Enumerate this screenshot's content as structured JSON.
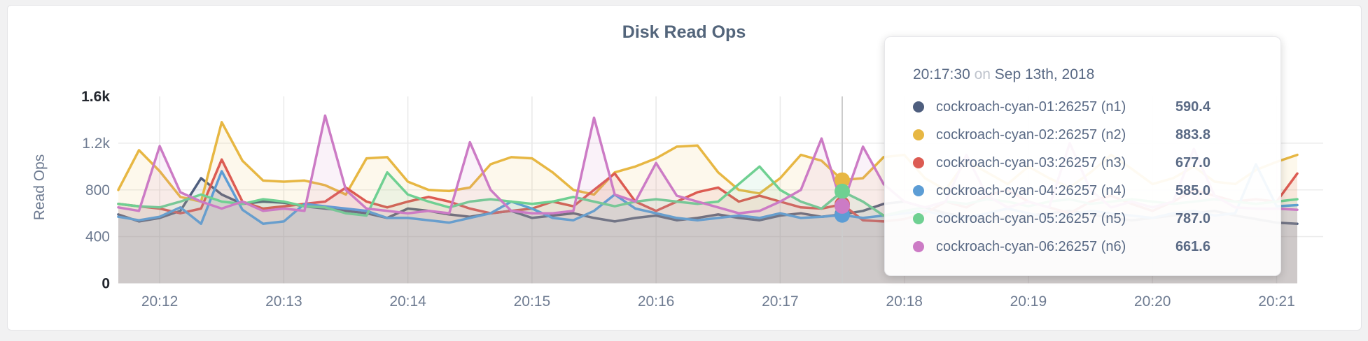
{
  "chart_data": {
    "type": "line",
    "title": "Disk Read Ops",
    "ylabel": "Read Ops",
    "xlabel": "",
    "ylim": [
      0,
      1600
    ],
    "grid": true,
    "x_start_time": "20:11:40",
    "x_end_time": "20:21:10",
    "x_interval_seconds": 10,
    "x_ticks": [
      {
        "label": "20:12",
        "offset_seconds": 20
      },
      {
        "label": "20:13",
        "offset_seconds": 80
      },
      {
        "label": "20:14",
        "offset_seconds": 140
      },
      {
        "label": "20:15",
        "offset_seconds": 200
      },
      {
        "label": "20:16",
        "offset_seconds": 260
      },
      {
        "label": "20:17",
        "offset_seconds": 320
      },
      {
        "label": "20:18",
        "offset_seconds": 380
      },
      {
        "label": "20:19",
        "offset_seconds": 440
      },
      {
        "label": "20:20",
        "offset_seconds": 500
      },
      {
        "label": "20:21",
        "offset_seconds": 560
      }
    ],
    "y_ticks": [
      {
        "label": "0",
        "value": 0,
        "emphasis": true,
        "grid": false
      },
      {
        "label": "400",
        "value": 400,
        "emphasis": false,
        "grid": true
      },
      {
        "label": "800",
        "value": 800,
        "emphasis": false,
        "grid": true
      },
      {
        "label": "1.2k",
        "value": 1200,
        "emphasis": false,
        "grid": true
      },
      {
        "label": "1.6k",
        "value": 1600,
        "emphasis": true,
        "grid": false
      }
    ],
    "hover": {
      "index": 35,
      "time": "20:17:30"
    },
    "series": [
      {
        "name": "cockroach-cyan-01:26257 (n1)",
        "short": "n1",
        "color": "#4e5e7e",
        "values": [
          590,
          530,
          560,
          620,
          900,
          760,
          680,
          700,
          690,
          660,
          640,
          620,
          600,
          560,
          640,
          620,
          590,
          570,
          600,
          620,
          560,
          580,
          600,
          560,
          530,
          560,
          580,
          540,
          560,
          590,
          560,
          540,
          580,
          600,
          570,
          590.4,
          620,
          680,
          700,
          650,
          600,
          570,
          550,
          560,
          580,
          600,
          620,
          590,
          560,
          540,
          560,
          580,
          600,
          620,
          580,
          550,
          520,
          510
        ]
      },
      {
        "name": "cockroach-cyan-02:26257 (n2)",
        "short": "n2",
        "color": "#e7b743",
        "values": [
          800,
          1140,
          960,
          740,
          700,
          1380,
          1050,
          880,
          870,
          880,
          840,
          760,
          1070,
          1080,
          870,
          800,
          790,
          820,
          1020,
          1080,
          1070,
          950,
          800,
          760,
          950,
          1000,
          1070,
          1170,
          1180,
          950,
          800,
          770,
          900,
          1100,
          1050,
          883.8,
          900,
          1080,
          1100,
          900,
          800,
          1050,
          950,
          850,
          1000,
          900,
          820,
          950,
          1100,
          980,
          850,
          900,
          1000,
          870,
          850,
          970,
          1040,
          1100
        ]
      },
      {
        "name": "cockroach-cyan-03:26257 (n3)",
        "short": "n3",
        "color": "#dc5b52",
        "values": [
          680,
          660,
          640,
          600,
          640,
          1060,
          700,
          640,
          660,
          680,
          700,
          820,
          700,
          650,
          700,
          740,
          700,
          640,
          600,
          620,
          640,
          700,
          660,
          800,
          940,
          700,
          620,
          700,
          780,
          820,
          700,
          750,
          700,
          650,
          640,
          677,
          540,
          530,
          550,
          600,
          700,
          650,
          750,
          800,
          700,
          650,
          600,
          700,
          750,
          680,
          620,
          700,
          800,
          750,
          700,
          720,
          700,
          940
        ]
      },
      {
        "name": "cockroach-cyan-04:26257 (n4)",
        "short": "n4",
        "color": "#5c9dd5",
        "values": [
          570,
          540,
          570,
          650,
          510,
          960,
          630,
          510,
          530,
          680,
          660,
          640,
          620,
          560,
          560,
          540,
          520,
          560,
          600,
          700,
          640,
          560,
          540,
          620,
          760,
          640,
          600,
          560,
          540,
          560,
          580,
          560,
          600,
          560,
          570,
          585,
          560,
          580,
          600,
          620,
          580,
          560,
          600,
          640,
          600,
          560,
          580,
          620,
          600,
          580,
          560,
          600,
          620,
          580,
          600,
          1020,
          660,
          670
        ]
      },
      {
        "name": "cockroach-cyan-05:26257 (n5)",
        "short": "n5",
        "color": "#6fd092",
        "values": [
          680,
          660,
          650,
          700,
          760,
          700,
          680,
          720,
          700,
          660,
          650,
          600,
          580,
          950,
          760,
          700,
          650,
          700,
          720,
          700,
          680,
          700,
          740,
          700,
          660,
          700,
          720,
          700,
          680,
          700,
          850,
          1000,
          800,
          700,
          640,
          787,
          700,
          580,
          620,
          650,
          700,
          680,
          720,
          700,
          660,
          700,
          720,
          680,
          700,
          720,
          700,
          680,
          700,
          720,
          700,
          680,
          700,
          720
        ]
      },
      {
        "name": "cockroach-cyan-06:26257 (n6)",
        "short": "n6",
        "color": "#cc7bc5",
        "values": [
          650,
          620,
          1175,
          780,
          700,
          640,
          700,
          620,
          640,
          620,
          1436,
          800,
          640,
          620,
          600,
          620,
          600,
          1208,
          800,
          620,
          600,
          600,
          620,
          1418,
          760,
          700,
          1030,
          750,
          700,
          650,
          600,
          620,
          700,
          800,
          1240,
          661.6,
          1170,
          850,
          700,
          650,
          700,
          1100,
          750,
          650,
          700,
          650,
          1200,
          800,
          650,
          700,
          650,
          700,
          1150,
          750,
          650,
          640,
          640,
          630
        ]
      }
    ]
  },
  "tooltip": {
    "time": "20:17:30",
    "on_word": "on",
    "date": "Sep 13th, 2018",
    "rows": [
      {
        "label": "cockroach-cyan-01:26257 (n1)",
        "value": "590.4",
        "color": "#4e5e7e"
      },
      {
        "label": "cockroach-cyan-02:26257 (n2)",
        "value": "883.8",
        "color": "#e7b743"
      },
      {
        "label": "cockroach-cyan-03:26257 (n3)",
        "value": "677.0",
        "color": "#dc5b52"
      },
      {
        "label": "cockroach-cyan-04:26257 (n4)",
        "value": "585.0",
        "color": "#5c9dd5"
      },
      {
        "label": "cockroach-cyan-05:26257 (n5)",
        "value": "787.0",
        "color": "#6fd092"
      },
      {
        "label": "cockroach-cyan-06:26257 (n6)",
        "value": "661.6",
        "color": "#cc7bc5"
      }
    ]
  }
}
